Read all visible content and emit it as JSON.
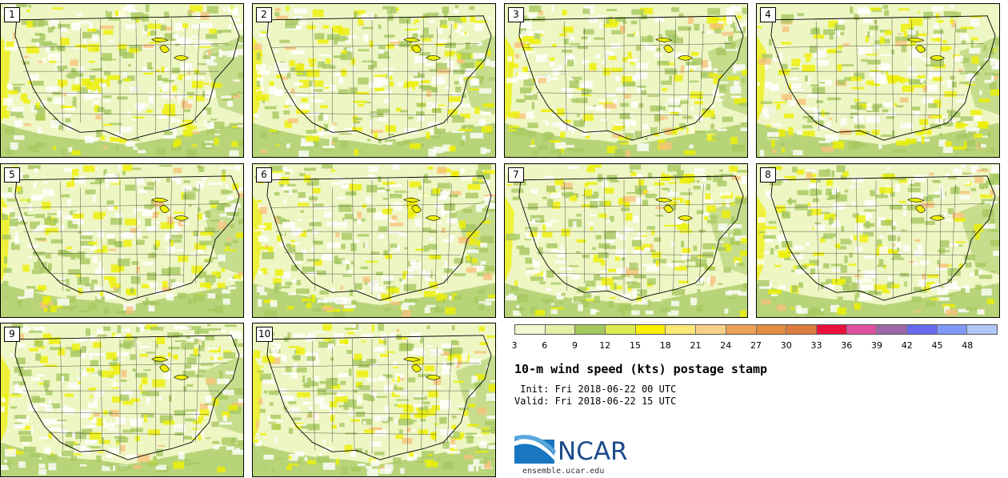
{
  "panels": [
    {
      "label": "1"
    },
    {
      "label": "2"
    },
    {
      "label": "3"
    },
    {
      "label": "4"
    },
    {
      "label": "5"
    },
    {
      "label": "6"
    },
    {
      "label": "7"
    },
    {
      "label": "8"
    },
    {
      "label": "9"
    },
    {
      "label": "10"
    }
  ],
  "legend": {
    "ticks": [
      "3",
      "6",
      "9",
      "12",
      "15",
      "18",
      "21",
      "24",
      "27",
      "30",
      "33",
      "36",
      "39",
      "42",
      "45",
      "48"
    ],
    "colors": [
      "#f4f8d0",
      "#e4f0a8",
      "#a4c85c",
      "#dcec50",
      "#fff000",
      "#fce878",
      "#f8d088",
      "#eca058",
      "#e48c40",
      "#dc7c3c",
      "#e8103c",
      "#e050a0",
      "#9c68a8",
      "#6868f0",
      "#8098f8",
      "#b0c8f8"
    ]
  },
  "title": "10-m wind speed (kts) postage stamp",
  "init": " Init: Fri 2018-06-22 00 UTC",
  "valid": "Valid: Fri 2018-06-22 15 UTC",
  "logo": {
    "text": "NCAR",
    "site": "ensemble.ucar.edu"
  },
  "map_colors": {
    "base": "#eef6c4",
    "light": "#ffffff",
    "green": "#a6c860",
    "yellow": "#eef000",
    "orange": "#f6c27a"
  }
}
